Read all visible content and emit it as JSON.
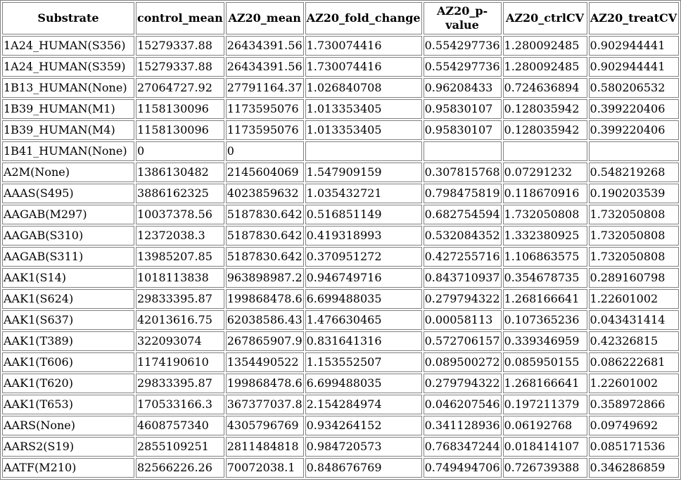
{
  "headers": [
    "Substrate",
    "control_mean",
    "AZ20_mean",
    "AZ20_fold_change",
    "AZ20_p-value",
    "AZ20_ctrlCV",
    "AZ20_treatCV"
  ],
  "rows": [
    [
      "1A24_HUMAN(S356)",
      "15279337.88",
      "26434391.56",
      "1.730074416",
      "0.554297736",
      "1.280092485",
      "0.902944441"
    ],
    [
      "1A24_HUMAN(S359)",
      "15279337.88",
      "26434391.56",
      "1.730074416",
      "0.554297736",
      "1.280092485",
      "0.902944441"
    ],
    [
      "1B13_HUMAN(None)",
      "27064727.92",
      "27791164.37",
      "1.026840708",
      "0.96208433",
      "0.724636894",
      "0.580206532"
    ],
    [
      "1B39_HUMAN(M1)",
      "1158130096",
      "1173595076",
      "1.013353405",
      "0.95830107",
      "0.128035942",
      "0.399220406"
    ],
    [
      "1B39_HUMAN(M4)",
      "1158130096",
      "1173595076",
      "1.013353405",
      "0.95830107",
      "0.128035942",
      "0.399220406"
    ],
    [
      "1B41_HUMAN(None)",
      "0",
      "0",
      "",
      "",
      "",
      ""
    ],
    [
      "A2M(None)",
      "1386130482",
      "2145604069",
      "1.547909159",
      "0.307815768",
      "0.07291232",
      "0.548219268"
    ],
    [
      "AAAS(S495)",
      "3886162325",
      "4023859632",
      "1.035432721",
      "0.798475819",
      "0.118670916",
      "0.190203539"
    ],
    [
      "AAGAB(M297)",
      "10037378.56",
      "5187830.642",
      "0.516851149",
      "0.682754594",
      "1.732050808",
      "1.732050808"
    ],
    [
      "AAGAB(S310)",
      "12372038.3",
      "5187830.642",
      "0.419318993",
      "0.532084352",
      "1.332380925",
      "1.732050808"
    ],
    [
      "AAGAB(S311)",
      "13985207.85",
      "5187830.642",
      "0.370951272",
      "0.427255716",
      "1.106863575",
      "1.732050808"
    ],
    [
      "AAK1(S14)",
      "1018113838",
      "963898987.2",
      "0.946749716",
      "0.843710937",
      "0.354678735",
      "0.289160798"
    ],
    [
      "AAK1(S624)",
      "29833395.87",
      "199868478.6",
      "6.699488035",
      "0.279794322",
      "1.268166641",
      "1.22601002"
    ],
    [
      "AAK1(S637)",
      "42013616.75",
      "62038586.43",
      "1.476630465",
      "0.00058113",
      "0.107365236",
      "0.043431414"
    ],
    [
      "AAK1(T389)",
      "322093074",
      "267865907.9",
      "0.831641316",
      "0.572706157",
      "0.339346959",
      "0.42326815"
    ],
    [
      "AAK1(T606)",
      "1174190610",
      "1354490522",
      "1.153552507",
      "0.089500272",
      "0.085950155",
      "0.086222681"
    ],
    [
      "AAK1(T620)",
      "29833395.87",
      "199868478.6",
      "6.699488035",
      "0.279794322",
      "1.268166641",
      "1.22601002"
    ],
    [
      "AAK1(T653)",
      "170533166.3",
      "367377037.8",
      "2.154284974",
      "0.046207546",
      "0.197211379",
      "0.358972866"
    ],
    [
      "AARS(None)",
      "4608757340",
      "4305796769",
      "0.934264152",
      "0.341128936",
      "0.06192768",
      "0.09749692"
    ],
    [
      "AARS2(S19)",
      "2855109251",
      "2811484818",
      "0.984720573",
      "0.768347244",
      "0.018414107",
      "0.085171536"
    ],
    [
      "AATF(M210)",
      "82566226.26",
      "70072038.1",
      "0.848676769",
      "0.749494706",
      "0.726739388",
      "0.346286859"
    ]
  ]
}
